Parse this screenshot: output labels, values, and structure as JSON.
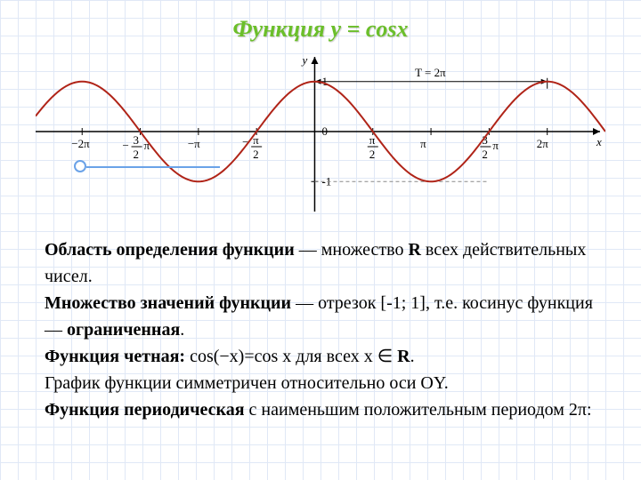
{
  "title": "Функция y = cosx",
  "chart": {
    "type": "line",
    "function": "cos",
    "xlim_pi": [
      -2.4,
      2.5
    ],
    "ylim": [
      -1.6,
      1.6
    ],
    "curve_color": "#b02418",
    "curve_width": 2,
    "axis_color": "#000000",
    "grid_color": "#c7d6ef",
    "background_color": "#ffffff",
    "amplitude": 1,
    "x_axis_label": "x",
    "y_axis_label": "y",
    "y_ticks": [
      {
        "val": 1,
        "label": "1"
      },
      {
        "val": 0,
        "label": "0"
      },
      {
        "val": -1,
        "label": "-1"
      }
    ],
    "x_ticks": [
      {
        "pi": -2,
        "label": "-2π"
      },
      {
        "pi": -1.5,
        "label": "-3π/2",
        "frac": [
          "3",
          "2"
        ],
        "neg": true
      },
      {
        "pi": -1,
        "label": "-π"
      },
      {
        "pi": -0.5,
        "label": "-π/2",
        "frac": [
          "π",
          "2"
        ],
        "neg": true
      },
      {
        "pi": 0.5,
        "label": "π/2",
        "frac": [
          "π",
          "2"
        ]
      },
      {
        "pi": 1,
        "label": "π"
      },
      {
        "pi": 1.5,
        "label": "3π/2",
        "frac": [
          "3",
          "2"
        ]
      },
      {
        "pi": 2,
        "label": "2π"
      }
    ],
    "period_arrow": {
      "from_pi": 0,
      "to_pi": 2,
      "label": "T = 2π",
      "y": 1
    },
    "label_fontsize": 13,
    "marker_color": "#6aa2e8"
  },
  "description": {
    "line1a": "Область определения функции",
    "line1b": " — множество ",
    "line1c": "R",
    "line1d": " всех действительных чисел.",
    "line2a": "Множество значений функции",
    "line2b": " — отрезок [-1; 1], т.е. косинус функция — ",
    "line2c": "ограниченная",
    "line2d": ".",
    "line3a": "Функция четная:",
    "line3b": " cos(−x)=cos x для всех x ",
    "line3sym": "∈",
    "line3c": " R",
    "line3d": ".",
    "line4": "График функции симметричен относительно оси OY.",
    "line5a": "Функция периодическая",
    "line5b": " с наименьшим положительным периодом 2π:"
  },
  "fontsize_title": 26,
  "fontsize_body": 20
}
